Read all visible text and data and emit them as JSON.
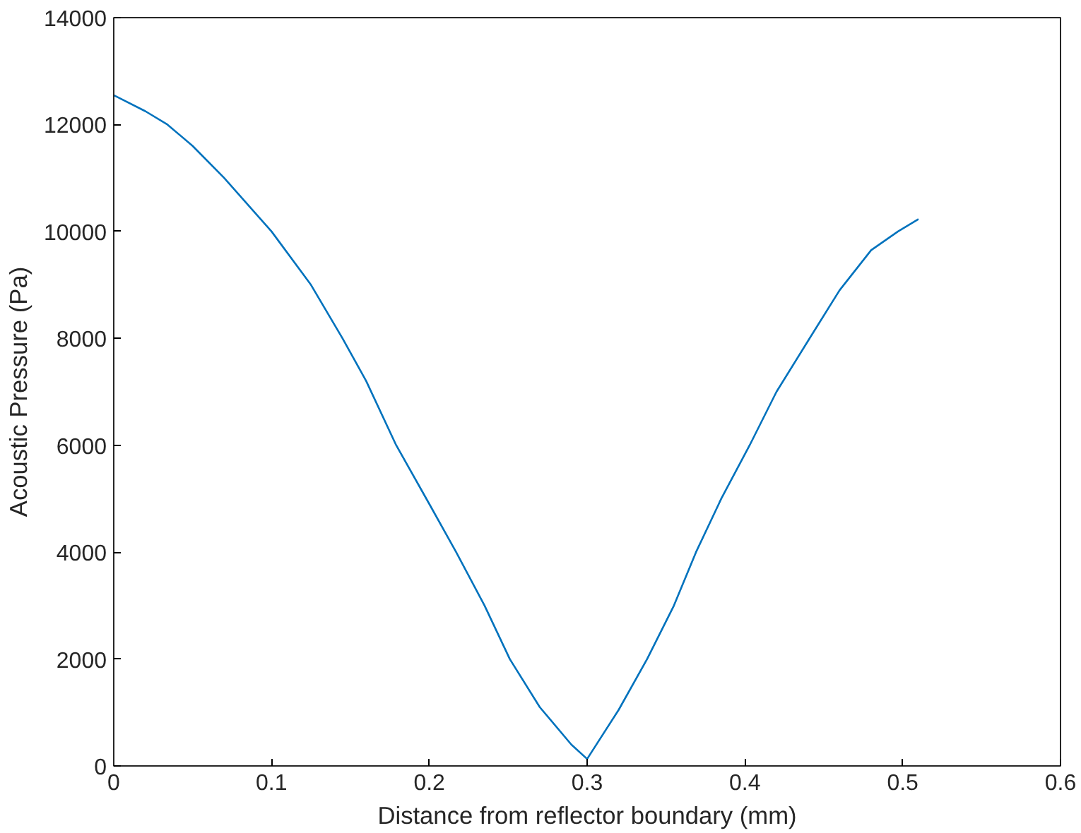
{
  "chart_data": {
    "type": "line",
    "xlabel": "Distance from reflector boundary (mm)",
    "ylabel": "Acoustic Pressure (Pa)",
    "x": [
      0,
      0.02,
      0.034,
      0.05,
      0.07,
      0.1,
      0.125,
      0.145,
      0.16,
      0.179,
      0.2,
      0.217,
      0.235,
      0.251,
      0.27,
      0.29,
      0.3,
      0.32,
      0.338,
      0.355,
      0.369,
      0.385,
      0.403,
      0.42,
      0.441,
      0.46,
      0.48,
      0.497,
      0.51
    ],
    "series": [
      {
        "color": "#0072bd",
        "values": [
          12550,
          12250,
          12000,
          11600,
          11000,
          10000,
          9000,
          8000,
          7200,
          6000,
          4900,
          4000,
          3000,
          2000,
          1100,
          400,
          130,
          1050,
          2000,
          3000,
          4000,
          5000,
          6000,
          7000,
          8000,
          8900,
          9650,
          10000,
          10230
        ]
      }
    ],
    "xlim": [
      0,
      0.6
    ],
    "ylim": [
      0,
      14000
    ],
    "xticks": [
      0,
      0.1,
      0.2,
      0.3,
      0.4,
      0.5,
      0.6
    ],
    "yticks": [
      0,
      2000,
      4000,
      6000,
      8000,
      10000,
      12000,
      14000
    ],
    "grid": false,
    "marker": "none",
    "line_style": "solid"
  }
}
